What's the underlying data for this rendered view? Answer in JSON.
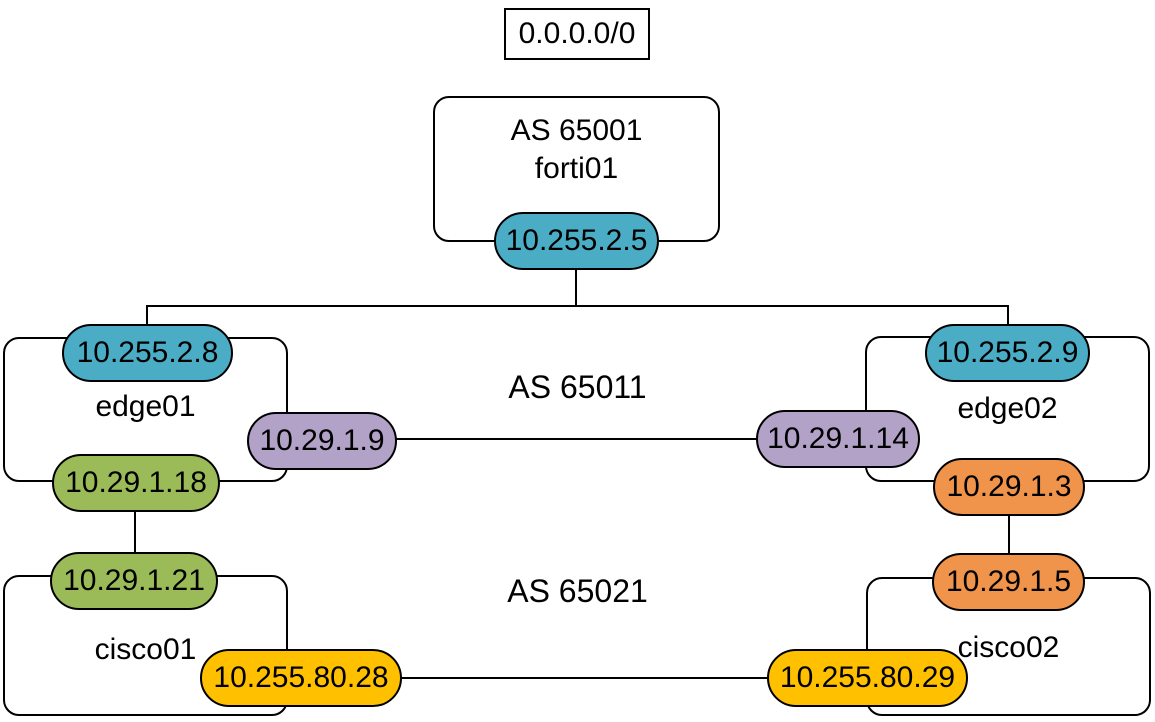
{
  "palette": {
    "teal": "#4BACC6",
    "purple": "#B2A2C7",
    "green": "#9BBB59",
    "orange": "#F0944B",
    "gold": "#FFC000",
    "line_color": "#000000",
    "background": "#FFFFFF"
  },
  "internet": {
    "label": "0.0.0.0/0"
  },
  "forti": {
    "as_label": "AS 65001",
    "name": "forti01",
    "downlink": {
      "ip": "10.255.2.5",
      "color_name": "teal"
    }
  },
  "as65011": {
    "label": "AS 65011",
    "edge01": {
      "name": "edge01",
      "uplink": {
        "ip": "10.255.2.8",
        "color_name": "teal"
      },
      "peerlink": {
        "ip": "10.29.1.9",
        "color_name": "purple"
      },
      "downlink": {
        "ip": "10.29.1.18",
        "color_name": "green"
      }
    },
    "edge02": {
      "name": "edge02",
      "uplink": {
        "ip": "10.255.2.9",
        "color_name": "teal"
      },
      "peerlink": {
        "ip": "10.29.1.14",
        "color_name": "purple"
      },
      "downlink": {
        "ip": "10.29.1.3",
        "color_name": "orange"
      }
    }
  },
  "as65021": {
    "label": "AS 65021",
    "cisco01": {
      "name": "cisco01",
      "uplink": {
        "ip": "10.29.1.21",
        "color_name": "green"
      },
      "peerlink": {
        "ip": "10.255.80.28",
        "color_name": "gold"
      }
    },
    "cisco02": {
      "name": "cisco02",
      "uplink": {
        "ip": "10.29.1.5",
        "color_name": "orange"
      },
      "peerlink": {
        "ip": "10.255.80.29",
        "color_name": "gold"
      }
    }
  }
}
